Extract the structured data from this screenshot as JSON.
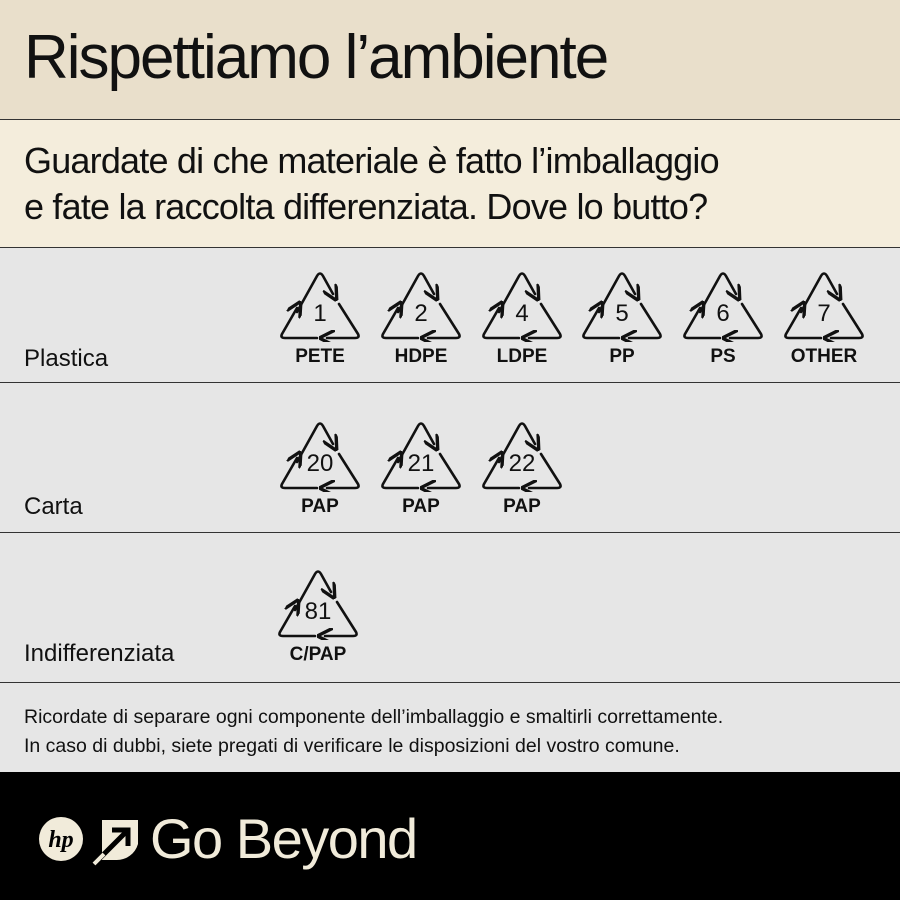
{
  "title": "Rispettiamo l’ambiente",
  "subtitle_line1": "Guardate di che materiale è fatto l’imballaggio",
  "subtitle_line2": "e fate la raccolta differenziata.  Dove lo butto?",
  "rows": [
    {
      "label": "Plastica",
      "codes": [
        {
          "num": "1",
          "abbr": "PETE"
        },
        {
          "num": "2",
          "abbr": "HDPE"
        },
        {
          "num": "4",
          "abbr": "LDPE"
        },
        {
          "num": "5",
          "abbr": "PP"
        },
        {
          "num": "6",
          "abbr": "PS"
        },
        {
          "num": "7",
          "abbr": "OTHER"
        }
      ]
    },
    {
      "label": "Carta",
      "codes": [
        {
          "num": "20",
          "abbr": "PAP"
        },
        {
          "num": "21",
          "abbr": "PAP"
        },
        {
          "num": "22",
          "abbr": "PAP"
        }
      ]
    },
    {
      "label": "Indifferenziata",
      "codes": [
        {
          "num": "81",
          "abbr": "C/PAP"
        }
      ]
    }
  ],
  "note_line1": "Ricordate di separare ogni componente dell’imballaggio e smaltirli correttamente.",
  "note_line2": "In caso di dubbi, siete pregati di verificare le disposizioni del vostro comune.",
  "footer": {
    "logo": "hp",
    "brand": "Go Beyond"
  },
  "colors": {
    "title_bg": "#e9dfcb",
    "subtitle_bg": "#f4eddc",
    "row_bg": "#e6e6e6",
    "footer_bg": "#000000",
    "footer_text": "#f1ebda"
  }
}
